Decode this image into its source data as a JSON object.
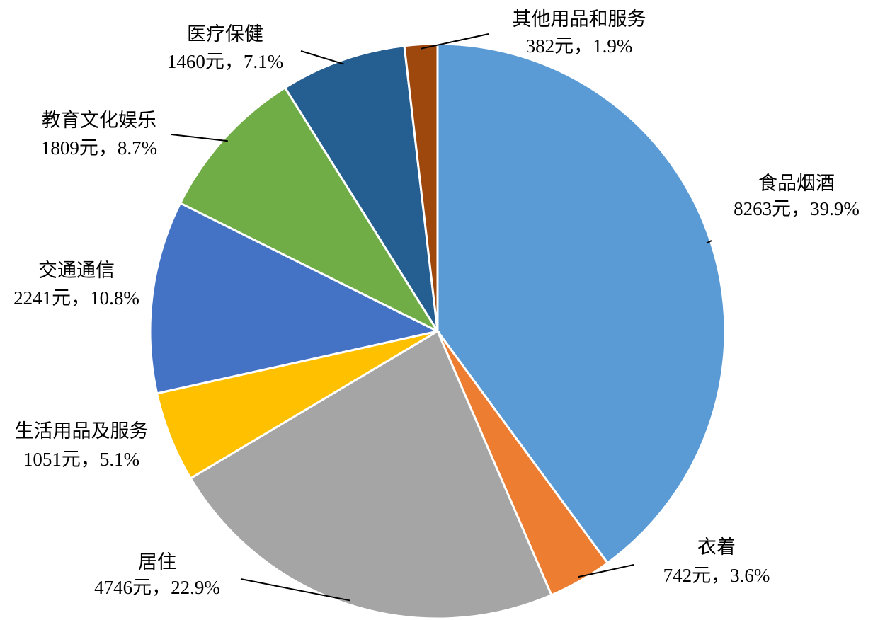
{
  "chart_data": {
    "type": "pie",
    "categories": [
      "食品烟酒",
      "衣着",
      "居住",
      "生活用品及服务",
      "交通通信",
      "教育文化娱乐",
      "医疗保健",
      "其他用品和服务"
    ],
    "values": [
      8263,
      742,
      4746,
      1051,
      2241,
      1809,
      1460,
      382
    ],
    "value_labels": [
      "8263元，39.9%",
      "742元，3.6%",
      "4746元，22.9%",
      "1051元，5.1%",
      "2241元，10.8%",
      "1809元，8.7%",
      "1460元，7.1%",
      "382元，1.9%"
    ],
    "colors": [
      "#5b9bd5",
      "#ed7d31",
      "#a5a5a5",
      "#ffc000",
      "#4472c4",
      "#70ad47",
      "#255e91",
      "#9e480e"
    ]
  }
}
